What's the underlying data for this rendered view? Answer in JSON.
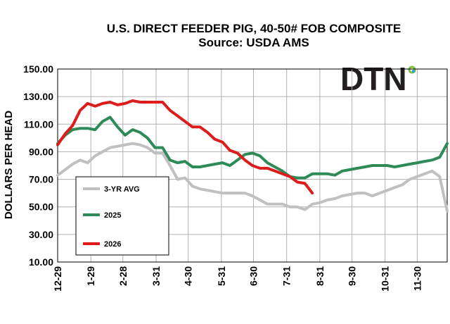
{
  "logo": {
    "text": "DTN",
    "colors": [
      "#7ac143",
      "#2a9fd6"
    ]
  },
  "chart_data": {
    "type": "line",
    "title": "U.S. DIRECT FEEDER PIG, 40-50# FOB COMPOSITE",
    "subtitle": "Source:  USDA AMS",
    "ylabel": "DOLLARS PER HEAD",
    "ylim": [
      10,
      150
    ],
    "yticks": [
      "150.00",
      "130.00",
      "110.00",
      "90.00",
      "70.00",
      "50.00",
      "30.00",
      "10.00"
    ],
    "ytick_values": [
      150,
      130,
      110,
      90,
      70,
      50,
      30,
      10
    ],
    "xlim": [
      0,
      52
    ],
    "xticks": [
      "12-29",
      "1-29",
      "2-28",
      "3-31",
      "4-30",
      "5-31",
      "6-30",
      "7-31",
      "8-31",
      "9-30",
      "10-31",
      "11-30"
    ],
    "xtick_positions": [
      0,
      4.43,
      8.71,
      13.14,
      17.43,
      21.86,
      26.14,
      30.57,
      35,
      39.29,
      43.71,
      48
    ],
    "grid": true,
    "legend_position": "bottom-left",
    "series": [
      {
        "name": "3-YR AVG",
        "color": "#c0c0c0",
        "x": [
          0,
          1,
          2,
          3,
          4,
          5,
          6,
          7,
          8,
          9,
          10,
          11,
          12,
          13,
          14,
          15,
          16,
          17,
          18,
          19,
          20,
          21,
          22,
          23,
          24,
          25,
          26,
          27,
          28,
          29,
          30,
          31,
          32,
          33,
          34,
          35,
          36,
          37,
          38,
          39,
          40,
          41,
          42,
          43,
          44,
          45,
          46,
          47,
          48,
          49,
          50,
          51,
          52
        ],
        "y": [
          73,
          77,
          81,
          84,
          82,
          87,
          90,
          93,
          94,
          95,
          96,
          95,
          93,
          89,
          89,
          80,
          70,
          71,
          65,
          63,
          62,
          61,
          60,
          60,
          60,
          60,
          58,
          55,
          52,
          52,
          52,
          50,
          50,
          48,
          52,
          53,
          55,
          56,
          58,
          59,
          60,
          60,
          58,
          60,
          62,
          64,
          66,
          70,
          72,
          74,
          76,
          72,
          47
        ]
      },
      {
        "name": "2025",
        "color": "#2e8b57",
        "x": [
          0,
          1,
          2,
          3,
          4,
          5,
          6,
          7,
          8,
          9,
          10,
          11,
          12,
          13,
          14,
          15,
          16,
          17,
          18,
          19,
          20,
          21,
          22,
          23,
          24,
          25,
          26,
          27,
          28,
          29,
          30,
          31,
          32,
          33,
          34,
          35,
          36,
          37,
          38,
          39,
          40,
          41,
          42,
          43,
          44,
          45,
          46,
          47,
          48,
          49,
          50,
          51,
          52
        ],
        "y": [
          96,
          102,
          106,
          107,
          107,
          106,
          112,
          115,
          108,
          102,
          106,
          104,
          100,
          93,
          93,
          84,
          82,
          83,
          79,
          79,
          80,
          81,
          82,
          80,
          84,
          88,
          89,
          87,
          82,
          79,
          76,
          72,
          71,
          71,
          74,
          74,
          74,
          73,
          76,
          77,
          78,
          79,
          80,
          80,
          80,
          79,
          80,
          81,
          82,
          83,
          84,
          86,
          96
        ]
      },
      {
        "name": "2026",
        "color": "#dd1c1c",
        "x": [
          0,
          1,
          2,
          3,
          4,
          5,
          6,
          7,
          8,
          9,
          10,
          11,
          12,
          13,
          14,
          15,
          16,
          17,
          18,
          19,
          20,
          21,
          22,
          23,
          24,
          25,
          26,
          27,
          28,
          29,
          30,
          31,
          32,
          33,
          34
        ],
        "y": [
          95,
          103,
          109,
          120,
          125,
          123,
          125,
          126,
          124,
          125,
          127,
          126,
          126,
          126,
          126,
          120,
          116,
          112,
          108,
          108,
          104,
          99,
          97,
          91,
          89,
          84,
          80,
          78,
          78,
          76,
          74,
          72,
          68,
          67,
          60
        ]
      }
    ]
  }
}
